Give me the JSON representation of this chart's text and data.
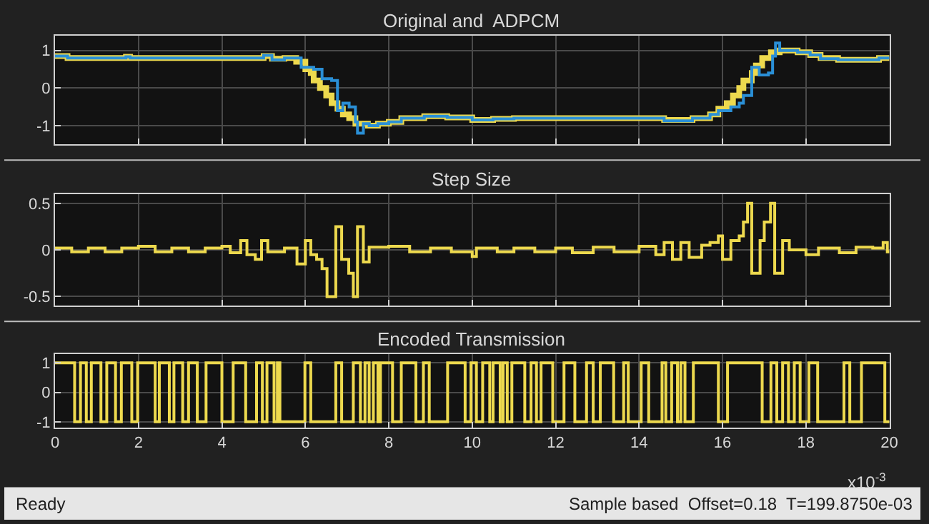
{
  "chart_data": [
    {
      "type": "step",
      "title": "Original and  ADPCM",
      "xlim": [
        0,
        20
      ],
      "xticks": [
        0,
        2,
        4,
        6,
        8,
        10,
        12,
        14,
        16,
        18,
        20
      ],
      "ylim": [
        -1.5,
        1.4
      ],
      "yticks": [
        -1,
        0,
        1
      ],
      "grid": true,
      "tick_labels": "y",
      "series": [
        {
          "color": "#edd94e",
          "x": [
            0,
            0.3,
            1.7,
            1.8,
            5.0,
            5.2,
            5.5,
            5.78,
            6.0,
            6.13,
            6.2,
            6.35,
            6.5,
            6.63,
            6.77,
            6.9,
            7.05,
            7.2,
            7.5,
            7.74,
            8.0,
            8.3,
            8.85,
            9.4,
            10.0,
            10.5,
            11.0,
            14.2,
            14.6,
            15.28,
            15.7,
            15.9,
            16.1,
            16.25,
            16.4,
            16.5,
            16.7,
            16.8,
            16.95,
            17.16,
            17.37,
            17.8,
            18.1,
            18.35,
            18.77,
            19.19,
            19.75,
            20
          ],
          "values": [
            0.85,
            0.8,
            0.83,
            0.8,
            0.85,
            0.78,
            0.8,
            0.7,
            0.5,
            0.4,
            0.2,
            0.0,
            -0.2,
            -0.4,
            -0.55,
            -0.7,
            -0.8,
            -0.95,
            -1.0,
            -0.95,
            -0.9,
            -0.8,
            -0.75,
            -0.78,
            -0.85,
            -0.82,
            -0.8,
            -0.8,
            -0.85,
            -0.8,
            -0.7,
            -0.55,
            -0.4,
            -0.2,
            0.0,
            0.2,
            0.4,
            0.6,
            0.8,
            0.95,
            1.0,
            0.95,
            0.88,
            0.8,
            0.75,
            0.75,
            0.8,
            0.8
          ]
        },
        {
          "color": "#2a8fd6",
          "x": [
            0,
            0.3,
            1.7,
            1.8,
            5.0,
            5.2,
            5.5,
            5.9,
            6.2,
            6.4,
            6.63,
            6.77,
            6.9,
            7.05,
            7.2,
            7.25,
            7.39,
            7.53,
            7.74,
            8.0,
            8.3,
            8.85,
            9.4,
            10.0,
            10.5,
            11.0,
            14.2,
            14.6,
            15.28,
            15.7,
            15.9,
            16.2,
            16.4,
            16.5,
            16.7,
            16.88,
            17.1,
            17.2,
            17.27,
            17.37,
            17.8,
            18.1,
            18.35,
            18.77,
            19.19,
            19.75,
            20
          ],
          "values": [
            0.85,
            0.8,
            0.83,
            0.8,
            0.87,
            0.75,
            0.8,
            0.55,
            0.5,
            0.25,
            0.2,
            -0.6,
            -0.4,
            -0.5,
            -0.9,
            -1.2,
            -0.95,
            -1.0,
            -0.95,
            -0.9,
            -0.8,
            -0.75,
            -0.78,
            -0.85,
            -0.82,
            -0.8,
            -0.8,
            -0.87,
            -0.8,
            -0.7,
            -0.6,
            -0.5,
            -0.4,
            -0.2,
            0.55,
            0.35,
            0.4,
            0.85,
            1.2,
            1.0,
            0.95,
            0.88,
            0.78,
            0.75,
            0.75,
            0.8,
            0.8
          ]
        }
      ]
    },
    {
      "type": "step",
      "title": "Step Size",
      "xlim": [
        0,
        20
      ],
      "xticks": [
        0,
        2,
        4,
        6,
        8,
        10,
        12,
        14,
        16,
        18,
        20
      ],
      "ylim": [
        -0.6,
        0.6
      ],
      "yticks": [
        -0.5,
        0,
        0.5
      ],
      "grid": true,
      "tick_labels": "y",
      "series": [
        {
          "color": "#edd94e",
          "x": [
            0,
            0.4,
            0.8,
            1.2,
            1.6,
            2.0,
            2.4,
            2.8,
            3.2,
            3.6,
            4.0,
            4.2,
            4.45,
            4.6,
            4.8,
            4.95,
            5.1,
            5.5,
            5.8,
            6.0,
            6.13,
            6.27,
            6.4,
            6.52,
            6.73,
            6.87,
            7.04,
            7.15,
            7.25,
            7.39,
            7.53,
            8.0,
            8.5,
            9.0,
            9.5,
            10.0,
            10.1,
            10.6,
            11.0,
            11.5,
            12.0,
            12.4,
            12.9,
            13.4,
            14.0,
            14.4,
            14.6,
            14.8,
            15.0,
            15.2,
            15.5,
            15.7,
            15.9,
            16.0,
            16.2,
            16.4,
            16.5,
            16.6,
            16.7,
            16.9,
            17.0,
            17.15,
            17.25,
            17.44,
            17.6,
            18.0,
            18.3,
            18.8,
            19.2,
            19.6,
            19.85,
            19.95,
            20
          ],
          "values": [
            0.02,
            -0.02,
            0.02,
            -0.02,
            0.02,
            0.04,
            -0.02,
            0.02,
            -0.02,
            0.02,
            0.04,
            -0.03,
            0.1,
            -0.05,
            -0.1,
            0.1,
            -0.02,
            0.02,
            -0.15,
            0.1,
            -0.05,
            -0.1,
            -0.2,
            -0.5,
            0.25,
            -0.1,
            -0.25,
            -0.5,
            0.25,
            -0.13,
            0.03,
            0.04,
            -0.02,
            0.02,
            -0.02,
            -0.07,
            0.02,
            -0.02,
            0.02,
            -0.02,
            0.02,
            -0.03,
            0.03,
            -0.02,
            0.04,
            -0.05,
            0.08,
            -0.1,
            0.08,
            -0.08,
            0.05,
            0.08,
            0.15,
            -0.1,
            0.1,
            0.15,
            0.3,
            0.5,
            -0.25,
            0.1,
            0.3,
            0.5,
            -0.25,
            0.1,
            0.0,
            -0.05,
            0.02,
            -0.03,
            0.03,
            0.02,
            0.08,
            -0.02,
            -0.02
          ]
        }
      ]
    },
    {
      "type": "step",
      "title": "Encoded Transmission",
      "xlim": [
        0,
        20
      ],
      "xticks": [
        0,
        2,
        4,
        6,
        8,
        10,
        12,
        14,
        16,
        18,
        20
      ],
      "ylim": [
        -1.2,
        1.3
      ],
      "yticks": [
        -1,
        0,
        1
      ],
      "grid": true,
      "annotations": [
        "x10$^{-3}$",
        "Ready",
        "Sample based  Offset=0.18  T=199.8750e-03"
      ],
      "series": [
        {
          "color": "#edd94e",
          "x": [
            0,
            0.47,
            0.61,
            0.75,
            0.87,
            1.1,
            1.24,
            1.45,
            1.59,
            1.84,
            1.98,
            2.4,
            2.5,
            2.74,
            2.85,
            3.06,
            3.2,
            3.41,
            3.62,
            4.0,
            4.27,
            4.57,
            4.83,
            4.97,
            5.08,
            5.25,
            5.33,
            5.39,
            5.99,
            6.13,
            6.73,
            6.87,
            7.15,
            7.32,
            7.43,
            7.53,
            7.63,
            7.74,
            7.8,
            8.09,
            8.3,
            8.65,
            8.83,
            8.97,
            9.41,
            9.83,
            9.97,
            10.1,
            10.25,
            10.42,
            10.5,
            10.67,
            10.74,
            10.84,
            10.95,
            11.26,
            11.41,
            11.54,
            11.65,
            11.93,
            12.2,
            12.46,
            12.74,
            12.9,
            13.07,
            13.39,
            13.63,
            13.74,
            14.05,
            14.23,
            14.55,
            14.64,
            14.78,
            14.92,
            15.0,
            15.1,
            15.3,
            15.9,
            16.12,
            16.95,
            17.16,
            17.3,
            17.44,
            17.58,
            17.72,
            17.86,
            18.07,
            18.28,
            18.91,
            19.05,
            19.33,
            19.89,
            20
          ],
          "values": [
            1,
            -1,
            1,
            -1,
            1,
            -1,
            1,
            -1,
            1,
            -1,
            1,
            -1,
            1,
            -1,
            1,
            -1,
            1,
            -1,
            1,
            -1,
            1,
            -1,
            1,
            -1,
            1,
            -1,
            1,
            -1,
            1,
            -1,
            1,
            -1,
            1,
            -1,
            1,
            -1,
            1,
            -1,
            1,
            -1,
            1,
            -1,
            1,
            -1,
            1,
            -1,
            1,
            -1,
            1,
            -1,
            1,
            -1,
            1,
            -1,
            1,
            -1,
            1,
            -1,
            1,
            -1,
            1,
            -1,
            1,
            -1,
            1,
            -1,
            1,
            -1,
            1,
            -1,
            1,
            -1,
            1,
            -1,
            1,
            -1,
            1,
            -1,
            1,
            -1,
            1,
            -1,
            1,
            -1,
            1,
            -1,
            1,
            -1,
            1,
            -1,
            1,
            -1,
            -1
          ]
        }
      ]
    }
  ]
}
